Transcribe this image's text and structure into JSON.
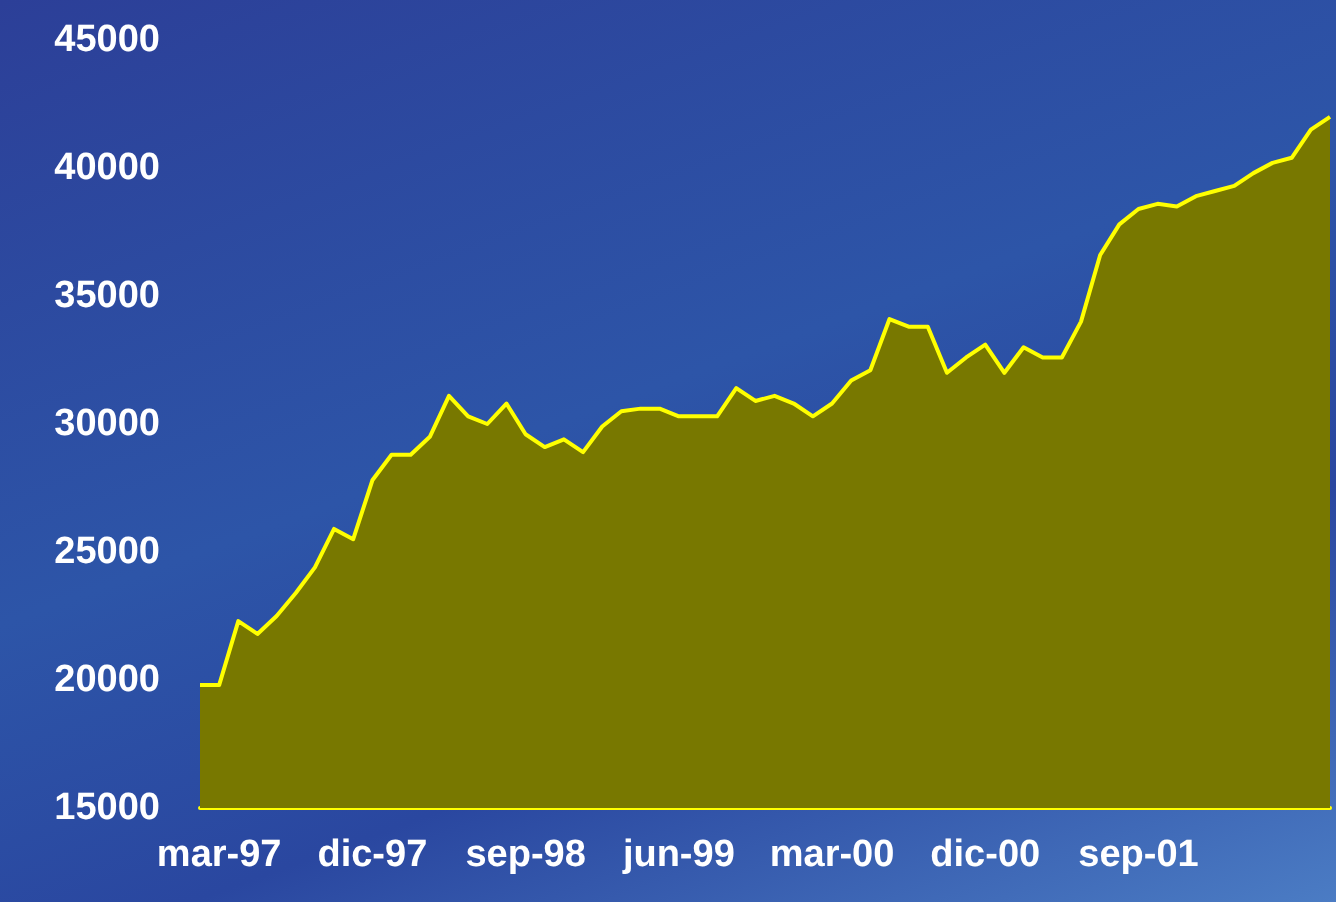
{
  "chart_data": {
    "type": "area",
    "categories": [
      null,
      "mar-97",
      null,
      null,
      null,
      null,
      null,
      null,
      null,
      "dic-97",
      null,
      null,
      null,
      null,
      null,
      null,
      null,
      "sep-98",
      null,
      null,
      null,
      null,
      null,
      null,
      null,
      "jun-99",
      null,
      null,
      null,
      null,
      null,
      null,
      null,
      "mar-00",
      null,
      null,
      null,
      null,
      null,
      null,
      null,
      "dic-00",
      null,
      null,
      null,
      null,
      null,
      null,
      null,
      "sep-01",
      null,
      null,
      null,
      null,
      null,
      null,
      null,
      null,
      null,
      null
    ],
    "values": [
      19800,
      19800,
      22300,
      21800,
      22500,
      23400,
      24400,
      25900,
      25500,
      27800,
      28800,
      28800,
      29500,
      31100,
      30300,
      30000,
      30800,
      29600,
      29100,
      29400,
      28900,
      29900,
      30500,
      30600,
      30600,
      30300,
      30300,
      30300,
      31400,
      30900,
      31100,
      30800,
      30300,
      30800,
      31700,
      32100,
      34100,
      33800,
      33800,
      32000,
      32600,
      33100,
      32000,
      33000,
      32600,
      32600,
      34000,
      36600,
      37800,
      38400,
      38600,
      38500,
      38900,
      39100,
      39300,
      39800,
      40200,
      40400,
      41500,
      42000
    ],
    "color": "#787800",
    "ylim": [
      15000,
      45000
    ],
    "yticks": [
      15000,
      20000,
      25000,
      30000,
      35000,
      40000,
      45000
    ],
    "marker": "none"
  }
}
